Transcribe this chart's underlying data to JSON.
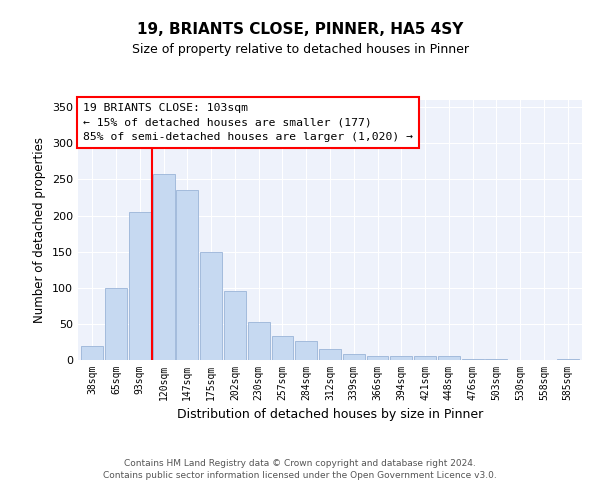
{
  "title": "19, BRIANTS CLOSE, PINNER, HA5 4SY",
  "subtitle": "Size of property relative to detached houses in Pinner",
  "xlabel": "Distribution of detached houses by size in Pinner",
  "ylabel": "Number of detached properties",
  "bar_labels": [
    "38sqm",
    "65sqm",
    "93sqm",
    "120sqm",
    "147sqm",
    "175sqm",
    "202sqm",
    "230sqm",
    "257sqm",
    "284sqm",
    "312sqm",
    "339sqm",
    "366sqm",
    "394sqm",
    "421sqm",
    "448sqm",
    "476sqm",
    "503sqm",
    "530sqm",
    "558sqm",
    "585sqm"
  ],
  "bar_values": [
    19,
    100,
    205,
    258,
    236,
    150,
    95,
    53,
    33,
    27,
    15,
    8,
    5,
    5,
    6,
    5,
    2,
    1,
    0,
    0,
    1
  ],
  "bar_color": "#c6d9f1",
  "bar_edge_color": "#9ab4d8",
  "vline_color": "red",
  "vline_x_index": 2.5,
  "ylim": [
    0,
    360
  ],
  "yticks": [
    0,
    50,
    100,
    150,
    200,
    250,
    300,
    350
  ],
  "annotation_title": "19 BRIANTS CLOSE: 103sqm",
  "annotation_line1": "← 15% of detached houses are smaller (177)",
  "annotation_line2": "85% of semi-detached houses are larger (1,020) →",
  "annotation_box_color": "white",
  "annotation_box_edge_color": "red",
  "footer_line1": "Contains HM Land Registry data © Crown copyright and database right 2024.",
  "footer_line2": "Contains public sector information licensed under the Open Government Licence v3.0.",
  "bg_color": "#eef2fb"
}
